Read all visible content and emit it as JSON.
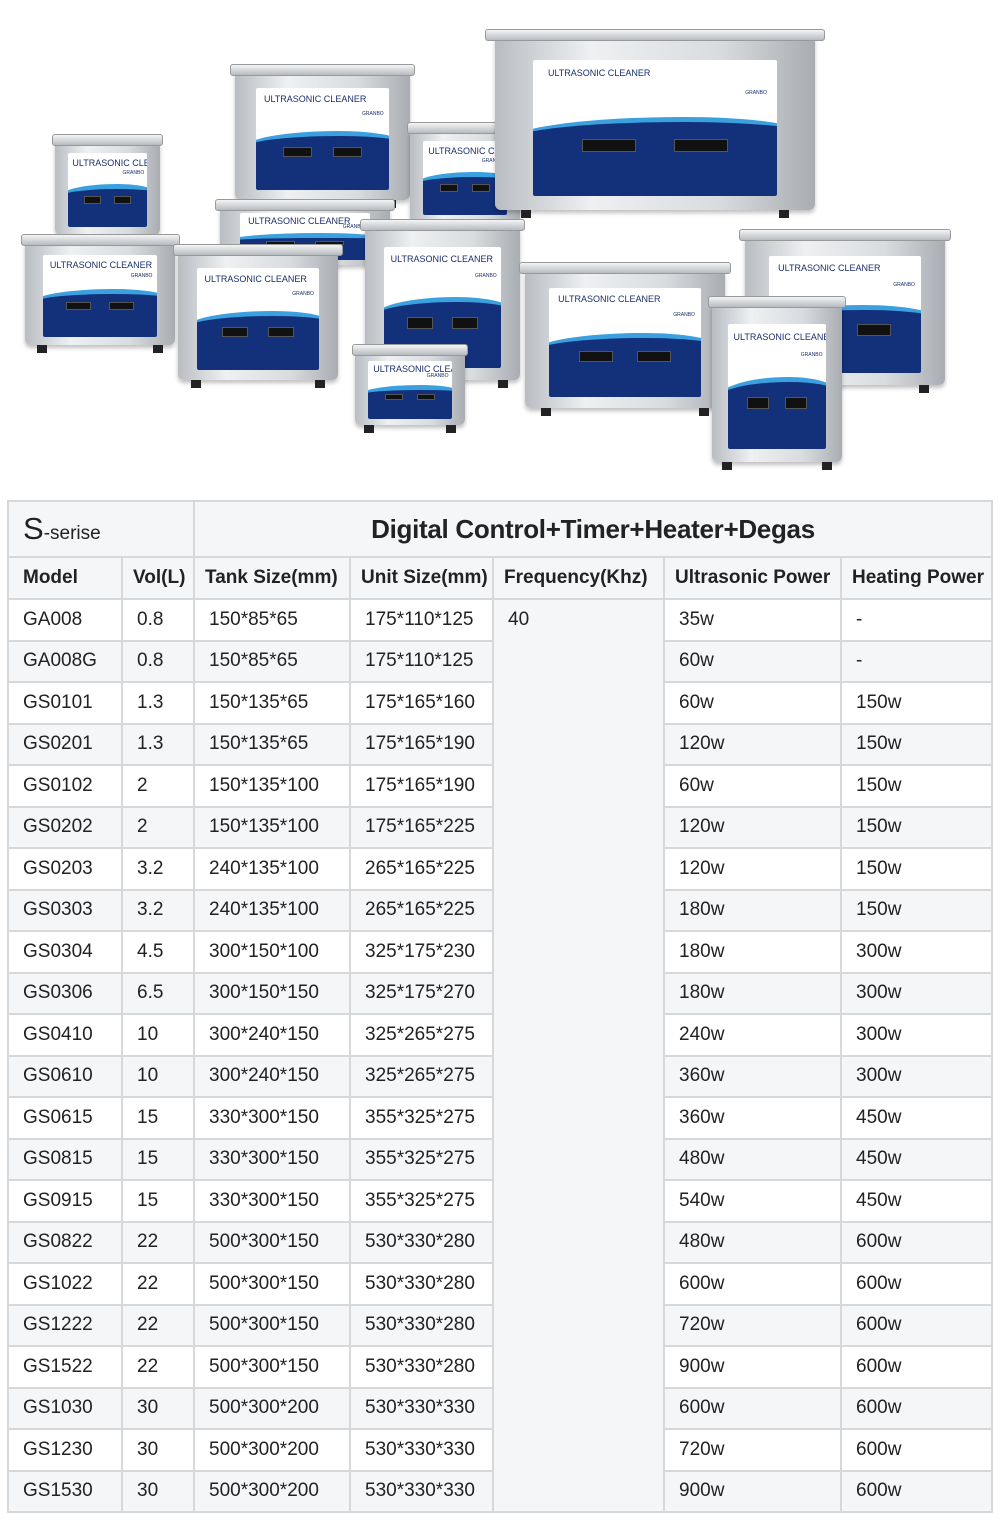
{
  "product_image": {
    "label": "ULTRASONIC CLEANER",
    "brand": "GRANBO"
  },
  "table": {
    "series_prefix": "S",
    "series_suffix": "-serise",
    "title": "Digital Control+Timer+Heater+Degas",
    "headers": [
      "Model",
      "Vol(L)",
      "Tank Size(mm)",
      "Unit Size(mm)",
      "Frequency(Khz)",
      "Ultrasonic Power",
      "Heating Power"
    ],
    "frequency": "40",
    "rows": [
      {
        "model": "GA008",
        "vol": "0.8",
        "tank": "150*85*65",
        "unit": "175*110*125",
        "ultrasonic": "35w",
        "heating": "-"
      },
      {
        "model": "GA008G",
        "vol": "0.8",
        "tank": "150*85*65",
        "unit": "175*110*125",
        "ultrasonic": "60w",
        "heating": "-"
      },
      {
        "model": "GS0101",
        "vol": "1.3",
        "tank": "150*135*65",
        "unit": "175*165*160",
        "ultrasonic": "60w",
        "heating": "150w"
      },
      {
        "model": "GS0201",
        "vol": "1.3",
        "tank": "150*135*65",
        "unit": "175*165*190",
        "ultrasonic": "120w",
        "heating": "150w"
      },
      {
        "model": "GS0102",
        "vol": "2",
        "tank": "150*135*100",
        "unit": "175*165*190",
        "ultrasonic": "60w",
        "heating": "150w"
      },
      {
        "model": "GS0202",
        "vol": "2",
        "tank": "150*135*100",
        "unit": "175*165*225",
        "ultrasonic": "120w",
        "heating": "150w"
      },
      {
        "model": "GS0203",
        "vol": "3.2",
        "tank": "240*135*100",
        "unit": "265*165*225",
        "ultrasonic": "120w",
        "heating": "150w"
      },
      {
        "model": "GS0303",
        "vol": "3.2",
        "tank": "240*135*100",
        "unit": "265*165*225",
        "ultrasonic": "180w",
        "heating": "150w"
      },
      {
        "model": "GS0304",
        "vol": "4.5",
        "tank": "300*150*100",
        "unit": "325*175*230",
        "ultrasonic": "180w",
        "heating": "300w"
      },
      {
        "model": "GS0306",
        "vol": "6.5",
        "tank": "300*150*150",
        "unit": "325*175*270",
        "ultrasonic": "180w",
        "heating": "300w"
      },
      {
        "model": "GS0410",
        "vol": "10",
        "tank": "300*240*150",
        "unit": "325*265*275",
        "ultrasonic": "240w",
        "heating": "300w"
      },
      {
        "model": "GS0610",
        "vol": "10",
        "tank": "300*240*150",
        "unit": "325*265*275",
        "ultrasonic": "360w",
        "heating": "300w"
      },
      {
        "model": "GS0615",
        "vol": "15",
        "tank": "330*300*150",
        "unit": "355*325*275",
        "ultrasonic": "360w",
        "heating": "450w"
      },
      {
        "model": "GS0815",
        "vol": "15",
        "tank": "330*300*150",
        "unit": "355*325*275",
        "ultrasonic": "480w",
        "heating": "450w"
      },
      {
        "model": "GS0915",
        "vol": "15",
        "tank": "330*300*150",
        "unit": "355*325*275",
        "ultrasonic": "540w",
        "heating": "450w"
      },
      {
        "model": "GS0822",
        "vol": "22",
        "tank": "500*300*150",
        "unit": "530*330*280",
        "ultrasonic": "480w",
        "heating": "600w"
      },
      {
        "model": "GS1022",
        "vol": "22",
        "tank": "500*300*150",
        "unit": "530*330*280",
        "ultrasonic": "600w",
        "heating": "600w"
      },
      {
        "model": "GS1222",
        "vol": "22",
        "tank": "500*300*150",
        "unit": "530*330*280",
        "ultrasonic": "720w",
        "heating": "600w"
      },
      {
        "model": "GS1522",
        "vol": "22",
        "tank": "500*300*150",
        "unit": "530*330*280",
        "ultrasonic": "900w",
        "heating": "600w"
      },
      {
        "model": "GS1030",
        "vol": "30",
        "tank": "500*300*200",
        "unit": "530*330*330",
        "ultrasonic": "600w",
        "heating": "600w"
      },
      {
        "model": "GS1230",
        "vol": "30",
        "tank": "500*300*200",
        "unit": "530*330*330",
        "ultrasonic": "720w",
        "heating": "600w"
      },
      {
        "model": "GS1530",
        "vol": "30",
        "tank": "500*300*200",
        "unit": "530*330*330",
        "ultrasonic": "900w",
        "heating": "600w"
      }
    ]
  }
}
